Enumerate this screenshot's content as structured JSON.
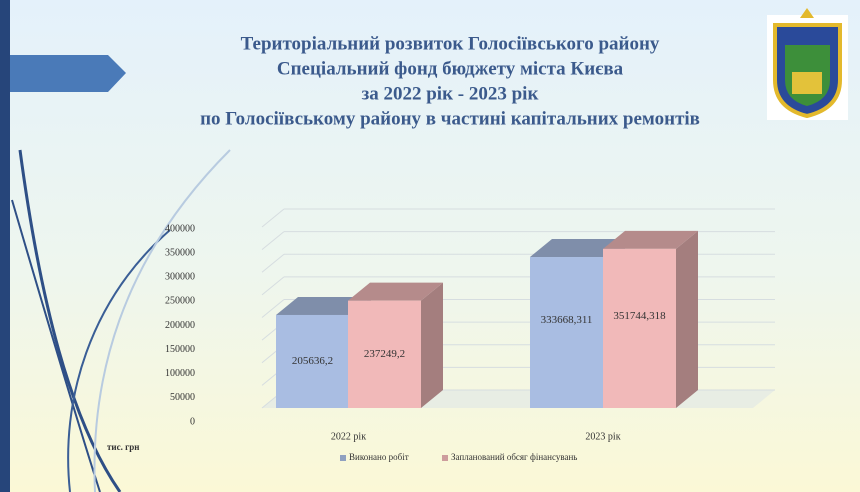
{
  "chart_data": {
    "type": "bar3d",
    "title": [
      "Територіальний розвиток Голосіївського району",
      "Спеціальний фонд бюджету міста Києва",
      "за 2022 рік - 2023 рік",
      "по Голосіївському району в частині капітальних ремонтів"
    ],
    "y_label": "тис. грн",
    "categories": [
      "2022 рік",
      "2023 рік"
    ],
    "series": [
      {
        "name": "Виконано робіт",
        "color": "#a9bde2",
        "values": [
          205636.2,
          333668.311
        ],
        "value_labels": [
          "205636,2",
          "333668,311"
        ]
      },
      {
        "name": "Запланований обсяг фінансувань",
        "color": "#f1b9b9",
        "values": [
          237249.2,
          351744.318
        ],
        "value_labels": [
          "237249,2",
          "351744,318"
        ]
      }
    ],
    "ylim": [
      0,
      400000
    ],
    "yticks": [
      0,
      50000,
      100000,
      150000,
      200000,
      250000,
      300000,
      350000,
      400000
    ],
    "grid": true
  }
}
